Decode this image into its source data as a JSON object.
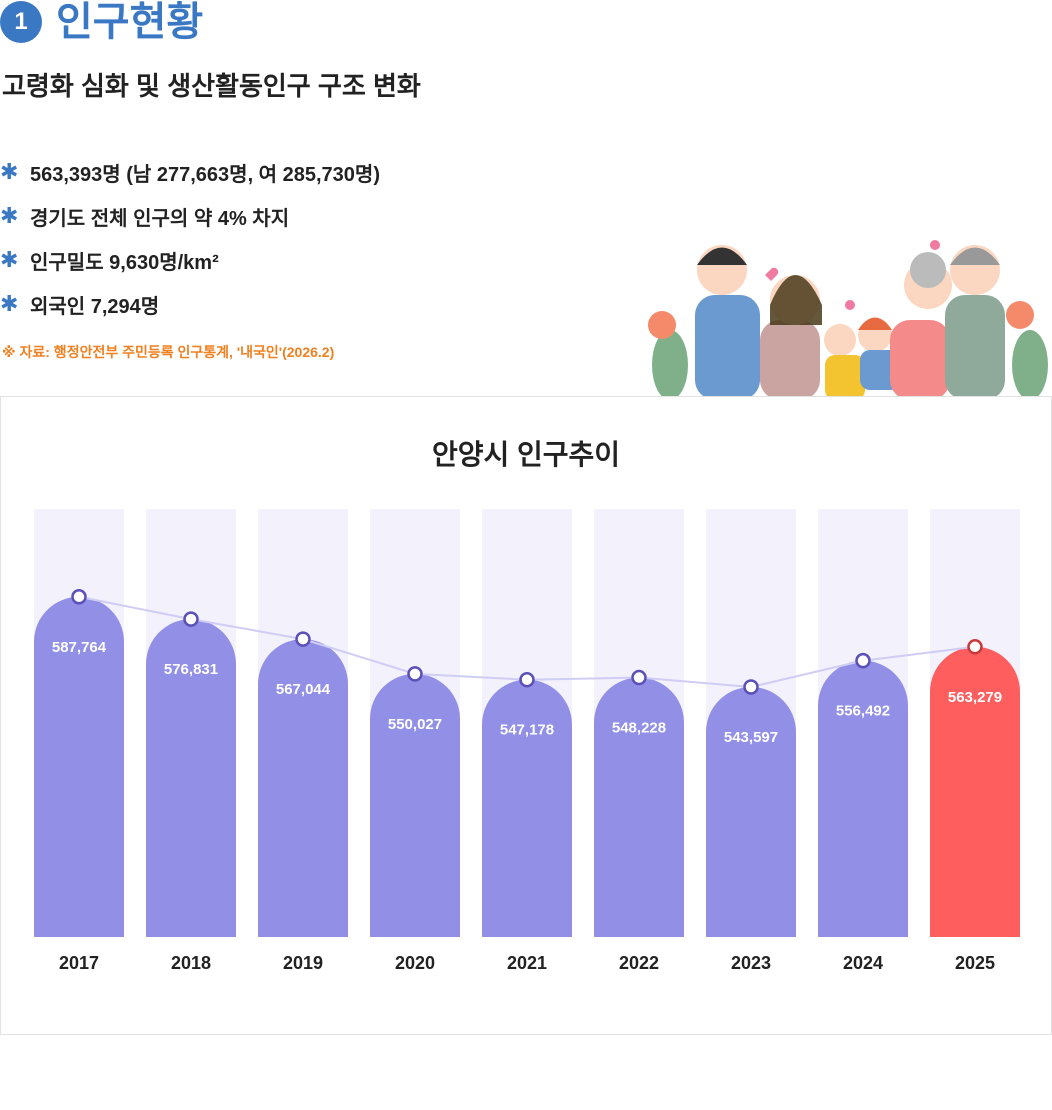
{
  "section": {
    "number": "1",
    "title": "인구현황"
  },
  "subtitle": "고령화 심화 및 생산활동인구 구조 변화",
  "bullets": [
    "563,393명 (남 277,663명, 여 285,730명)",
    "경기도 전체 인구의 약 4% 차지",
    "인구밀도 9,630명/km²",
    "외국인 7,294명"
  ],
  "bullet_icon": "asterisk-icon",
  "source": "※ 자료: 행정안전부 주민등록 인구통계, '내국인'(2026.2)",
  "chart_data": {
    "type": "bar",
    "title": "안양시 인구추이",
    "categories": [
      "2017",
      "2018",
      "2019",
      "2020",
      "2021",
      "2022",
      "2023",
      "2024",
      "2025"
    ],
    "values": [
      587764,
      576831,
      567044,
      550027,
      547178,
      548228,
      543597,
      556492,
      563279
    ],
    "value_labels": [
      "587,764",
      "576,831",
      "567,044",
      "550,027",
      "547,178",
      "548,228",
      "543,597",
      "556,492",
      "563,279"
    ],
    "overlay": "line",
    "colors": {
      "bar": "#9290e6",
      "highlight": "#fe5e5e",
      "background_bar": "#f2f1fc",
      "line": "#cfcdf4",
      "marker": "#5a50b8",
      "highlight_marker": "#c83a3a"
    },
    "xlabel": "",
    "ylabel": "",
    "grid": false
  }
}
